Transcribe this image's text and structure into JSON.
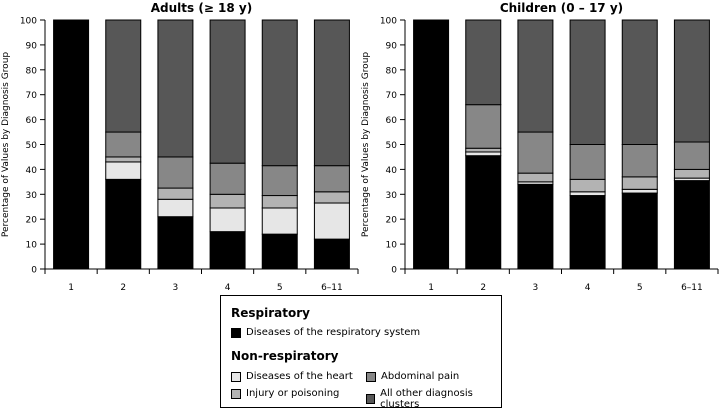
{
  "chart_data": [
    {
      "type": "bar",
      "stacked": true,
      "title": "Adults (≥ 18 y)",
      "xlabel": "",
      "ylabel": "Percentage of Values by Diagnosis Group",
      "ylim": [
        0,
        100
      ],
      "yticks": [
        0,
        10,
        20,
        30,
        40,
        50,
        60,
        70,
        80,
        90,
        100
      ],
      "categories": [
        "1",
        "2",
        "3",
        "4",
        "5",
        "6–11"
      ],
      "series": [
        {
          "name": "Diseases of the respiratory system",
          "values": [
            100,
            36,
            21,
            15,
            14,
            12
          ]
        },
        {
          "name": "Diseases of the heart",
          "values": [
            0,
            7,
            7,
            9.5,
            10.5,
            14.5
          ]
        },
        {
          "name": "Injury or poisoning",
          "values": [
            0,
            2,
            4.5,
            5.5,
            5,
            4.5
          ]
        },
        {
          "name": "Abdominal pain",
          "values": [
            0,
            10,
            12.5,
            12.5,
            12,
            10.5
          ]
        },
        {
          "name": "All other diagnosis clusters",
          "values": [
            0,
            45,
            55,
            57.5,
            58.5,
            58.5
          ]
        }
      ]
    },
    {
      "type": "bar",
      "stacked": true,
      "title": "Children (0 – 17 y)",
      "xlabel": "",
      "ylabel": "Percentage of Values by Diagnosis Group",
      "ylim": [
        0,
        100
      ],
      "yticks": [
        0,
        10,
        20,
        30,
        40,
        50,
        60,
        70,
        80,
        90,
        100
      ],
      "categories": [
        "1",
        "2",
        "3",
        "4",
        "5",
        "6–11"
      ],
      "series": [
        {
          "name": "Diseases of the respiratory system",
          "values": [
            100,
            45.5,
            34,
            29.5,
            30.5,
            35.5
          ]
        },
        {
          "name": "Diseases of the heart",
          "values": [
            0,
            1.5,
            1,
            1.5,
            1.5,
            1
          ]
        },
        {
          "name": "Injury or poisoning",
          "values": [
            0,
            1.5,
            3.5,
            5,
            5,
            3.5
          ]
        },
        {
          "name": "Abdominal pain",
          "values": [
            0,
            17.5,
            16.5,
            14,
            13,
            11
          ]
        },
        {
          "name": "All other diagnosis clusters",
          "values": [
            0,
            34,
            45,
            50,
            50,
            49
          ]
        }
      ]
    }
  ],
  "colors": [
    "#000000",
    "#e6e6e6",
    "#b3b3b3",
    "#878787",
    "#575757"
  ],
  "legend": {
    "respiratory_heading": "Respiratory",
    "nonrespiratory_heading": "Non-respiratory",
    "items": [
      "Diseases of the respiratory system",
      "Diseases of the heart",
      "Injury or poisoning",
      "Abdominal pain",
      "All other diagnosis clusters"
    ]
  }
}
